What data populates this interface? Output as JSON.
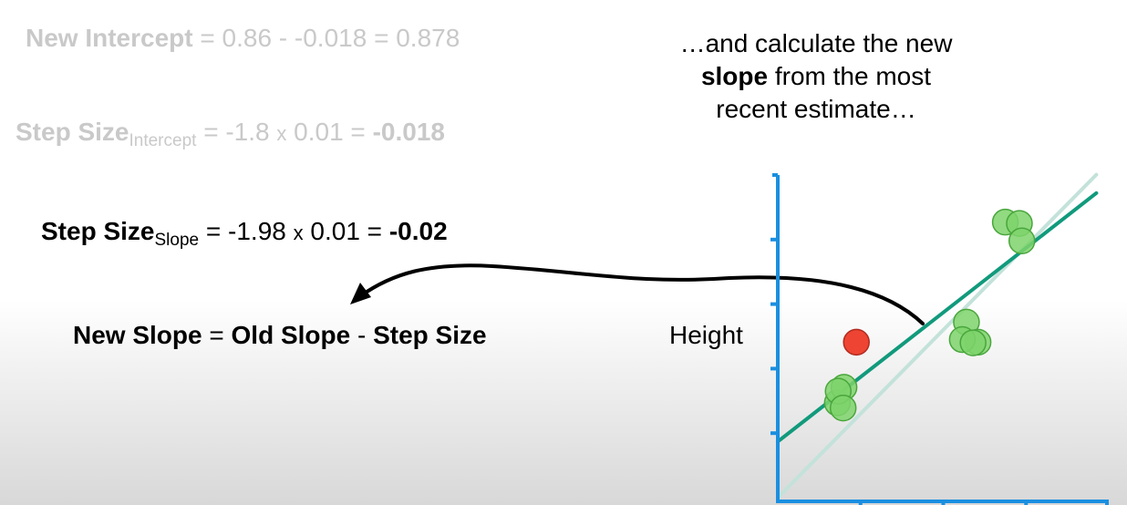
{
  "formulas": {
    "new_intercept": {
      "label": "New Intercept",
      "equals": "=",
      "expression": "0.86 - -0.018 = 0.878"
    },
    "step_intercept": {
      "label": "Step Size",
      "sub": "Intercept",
      "equals": "=",
      "a": "-1.8",
      "times": "x",
      "b": "0.01 =",
      "result": "-0.018"
    },
    "step_slope": {
      "label": "Step Size",
      "sub": "Slope",
      "equals": "=",
      "a": "-1.98",
      "times": "x",
      "b": "0.01 =",
      "result": "-0.02"
    },
    "new_slope": {
      "lhs": "New Slope",
      "equals": "=",
      "term1": "Old Slope",
      "minus": "-",
      "term2": "Step Size"
    }
  },
  "caption": {
    "line1": "…and calculate the new",
    "bold": "slope",
    "line2_rest": "from the most",
    "line3": "recent estimate…"
  },
  "chart": {
    "ylabel": "Height",
    "colors": {
      "axis": "#1a8fe0",
      "fit_line": "#119a7c",
      "old_fit_line": "#c3e2da",
      "point_fill": "#7ed36b",
      "point_stroke": "#49a63c",
      "highlight_point": "#ee4433",
      "arrow": "#000000"
    }
  },
  "chart_data": {
    "type": "scatter",
    "ylabel": "Height",
    "xlabel": "",
    "points": [
      {
        "group": "low",
        "x": 0.72,
        "y": 1.47
      },
      {
        "group": "low",
        "x": 0.8,
        "y": 1.71
      },
      {
        "group": "low",
        "x": 0.73,
        "y": 1.65
      },
      {
        "group": "low",
        "x": 0.79,
        "y": 1.39
      },
      {
        "group": "mid",
        "x": 2.28,
        "y": 2.72
      },
      {
        "group": "mid",
        "x": 2.42,
        "y": 2.41
      },
      {
        "group": "mid",
        "x": 2.23,
        "y": 2.45
      },
      {
        "group": "mid",
        "x": 2.36,
        "y": 2.4
      },
      {
        "group": "high",
        "x": 2.75,
        "y": 4.27
      },
      {
        "group": "high",
        "x": 2.92,
        "y": 4.25
      },
      {
        "group": "high",
        "x": 2.95,
        "y": 3.98
      }
    ],
    "highlight_point": {
      "x": 0.95,
      "y": 2.41
    },
    "lines": [
      {
        "role": "current",
        "intercept": 0.87,
        "slope": 1.0
      },
      {
        "role": "previous",
        "intercept": 0.0,
        "slope": 1.3
      }
    ],
    "xlim": [
      0,
      4
    ],
    "ylim": [
      0,
      5
    ],
    "x_ticks": [
      1,
      2,
      3,
      4
    ],
    "y_ticks": [
      1,
      2,
      3,
      4,
      5
    ],
    "grid": false
  }
}
